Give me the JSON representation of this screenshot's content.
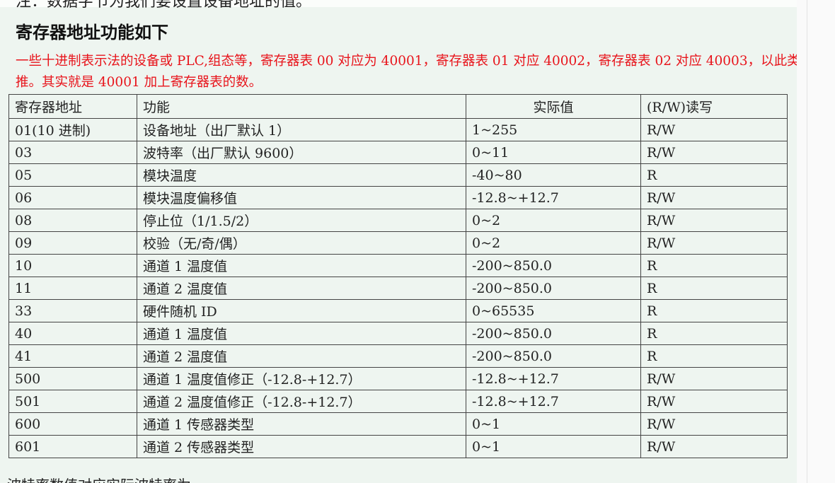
{
  "top_note": "注：数据字节为我们要设置设备地址的值。",
  "heading": "寄存器地址功能如下",
  "red_note": "一些十进制表示法的设备或 PLC,组态等，寄存器表 00 对应为 40001，寄存器表 01 对应 40002，寄存器表 02 对应 40003，以此类推。其实就是 40001 加上寄存器表的数。",
  "table": {
    "headers": [
      "寄存器地址",
      "功能",
      "实际值",
      "(R/W)读写"
    ],
    "rows": [
      [
        "01(10 进制)",
        "设备地址（出厂默认 1）",
        "1~255",
        "R/W"
      ],
      [
        "03",
        "波特率（出厂默认 9600）",
        "0~11",
        "R/W"
      ],
      [
        "05",
        "模块温度",
        "-40~80",
        "R"
      ],
      [
        "06",
        "模块温度偏移值",
        "-12.8~+12.7",
        "R/W"
      ],
      [
        "08",
        "停止位（1/1.5/2）",
        "0~2",
        "R/W"
      ],
      [
        "09",
        "校验（无/奇/偶）",
        "0~2",
        "R/W"
      ],
      [
        "10",
        "通道 1 温度值",
        "-200~850.0",
        "R"
      ],
      [
        "11",
        "通道 2 温度值",
        "-200~850.0",
        "R"
      ],
      [
        "33",
        "硬件随机 ID",
        "0~65535",
        "R"
      ],
      [
        "40",
        "通道 1 温度值",
        "-200~850.0",
        "R"
      ],
      [
        "41",
        "通道 2 温度值",
        "-200~850.0",
        "R"
      ],
      [
        "500",
        "通道 1 温度值修正（-12.8-+12.7）",
        "-12.8~+12.7",
        "R/W"
      ],
      [
        "501",
        "通道 2 温度值修正（-12.8-+12.7）",
        "-12.8~+12.7",
        "R/W"
      ],
      [
        "600",
        "通道 1 传感器类型",
        "0~1",
        "R/W"
      ],
      [
        "601",
        "通道 2 传感器类型",
        "0~1",
        "R/W"
      ]
    ]
  },
  "bottom_note": "波特率数值对应实际波特率为"
}
